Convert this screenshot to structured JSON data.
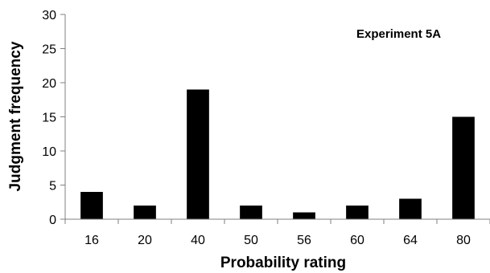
{
  "chart_data": {
    "type": "bar",
    "title": "",
    "annotation": "Experiment 5A",
    "xlabel": "Probability rating",
    "ylabel": "Judgment frequency",
    "categories": [
      "16",
      "20",
      "40",
      "50",
      "56",
      "60",
      "64",
      "80"
    ],
    "values": [
      4,
      2,
      19,
      2,
      1,
      2,
      3,
      15
    ],
    "ylim": [
      0,
      30
    ],
    "yticks": [
      0,
      5,
      10,
      15,
      20,
      25,
      30
    ],
    "grid": false,
    "legend": "none",
    "bar_color": "#000000"
  }
}
